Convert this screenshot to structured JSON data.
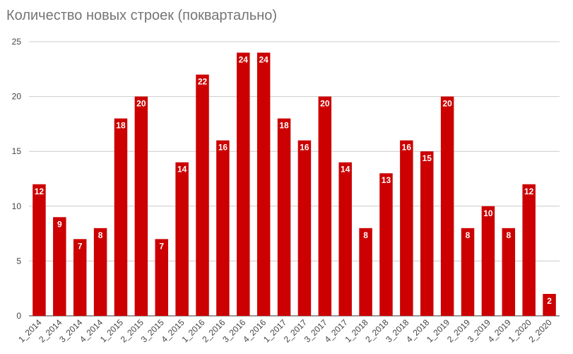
{
  "chart_data": {
    "type": "bar",
    "title": "Количество новых строек (поквартально)",
    "categories": [
      "1_2014",
      "2_2014",
      "3_2014",
      "4_2014",
      "1_2015",
      "2_2015",
      "3_2015",
      "4_2015",
      "1_2016",
      "2_2016",
      "3_2016",
      "4_2016",
      "1_2017",
      "2_2017",
      "3_2017",
      "4_2017",
      "1_2018",
      "2_2018",
      "3_2018",
      "4_2018",
      "1_2019",
      "2_2019",
      "3_2019",
      "4_2019",
      "1_2020",
      "2_2020"
    ],
    "values": [
      12,
      9,
      7,
      8,
      18,
      20,
      7,
      14,
      22,
      16,
      24,
      24,
      18,
      16,
      20,
      14,
      8,
      13,
      16,
      15,
      20,
      8,
      10,
      8,
      12,
      2
    ],
    "ylim": [
      0,
      25
    ],
    "yticks": [
      0,
      5,
      10,
      15,
      20,
      25
    ],
    "grid": true,
    "colors": {
      "bar": "#cc0000",
      "grid": "#cccccc",
      "baseline": "#333333"
    }
  }
}
